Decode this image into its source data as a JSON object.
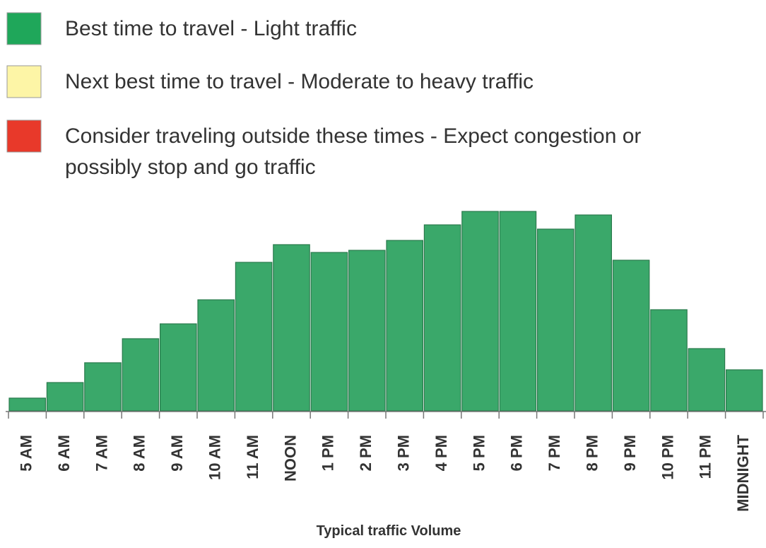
{
  "chart_data": {
    "type": "bar",
    "legend": [
      {
        "color": "#1fa75a",
        "lines": [
          "Best time to travel - Light traffic"
        ]
      },
      {
        "color": "#fdf5a6",
        "lines": [
          "Next best time to travel - Moderate to heavy traffic"
        ]
      },
      {
        "color": "#e8392a",
        "lines": [
          "Consider traveling outside these times - Expect congestion or",
          "possibly stop and go traffic"
        ]
      }
    ],
    "categories": [
      "5 AM",
      "6 AM",
      "7 AM",
      "8 AM",
      "9 AM",
      "10 AM",
      "11 AM",
      "NOON",
      "1 PM",
      "2 PM",
      "3 PM",
      "4 PM",
      "5 PM",
      "6 PM",
      "7 PM",
      "8 PM",
      "9 PM",
      "10 PM",
      "11 PM",
      "MIDNIGHT"
    ],
    "values": [
      18,
      40,
      68,
      102,
      123,
      157,
      210,
      235,
      224,
      227,
      241,
      263,
      282,
      282,
      257,
      277,
      213,
      143,
      88,
      58
    ],
    "color": "#3aa86a",
    "ylim": [
      0,
      300
    ],
    "x_label": "Typical traffic Volume"
  }
}
